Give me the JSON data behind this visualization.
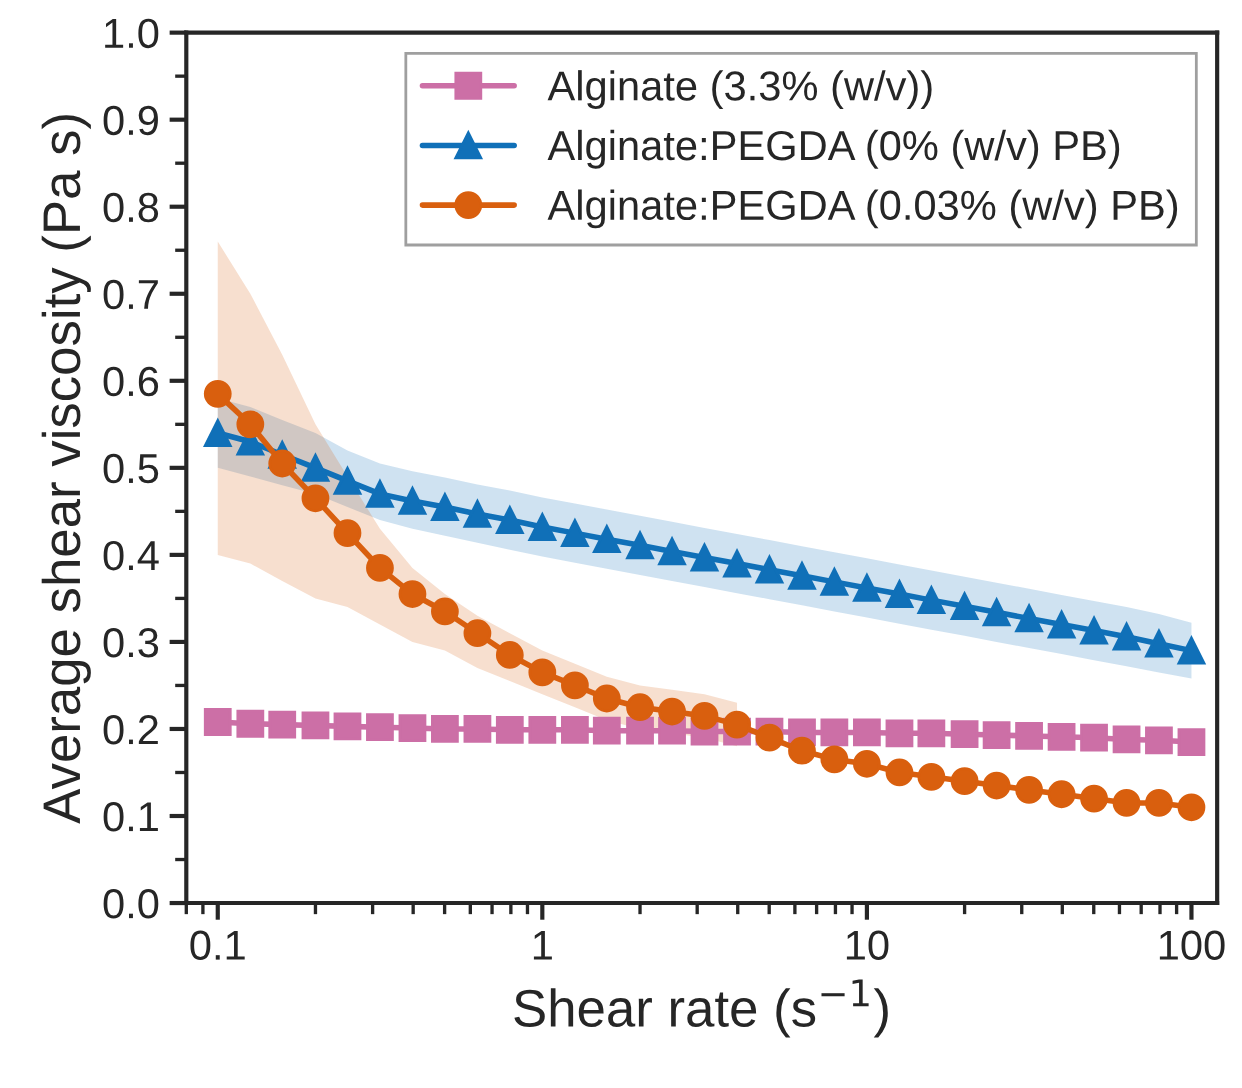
{
  "chart_data": {
    "type": "line",
    "xlabel": "Shear rate (s$^{−1}$)",
    "ylabel": "Average shear viscosity (Pa s)",
    "log": "x",
    "x": [
      0.1,
      0.126,
      0.158,
      0.2,
      0.251,
      0.316,
      0.398,
      0.501,
      0.631,
      0.794,
      1,
      1.26,
      1.58,
      2,
      2.51,
      3.16,
      3.98,
      5.01,
      6.31,
      7.94,
      10,
      12.6,
      15.8,
      20,
      25.1,
      31.6,
      39.8,
      50.1,
      63.1,
      79.4,
      100
    ],
    "series": [
      {
        "name": "Alginate (3.3% (w/v))",
        "color": "#cc6fa6",
        "marker": "square",
        "values": [
          0.208,
          0.206,
          0.205,
          0.204,
          0.203,
          0.202,
          0.201,
          0.2,
          0.2,
          0.199,
          0.199,
          0.199,
          0.198,
          0.198,
          0.198,
          0.197,
          0.197,
          0.197,
          0.196,
          0.196,
          0.196,
          0.195,
          0.195,
          0.194,
          0.193,
          0.192,
          0.191,
          0.19,
          0.188,
          0.187,
          0.185
        ]
      },
      {
        "name": "Alginate:PEGDA (0% (w/v) PB)",
        "color": "#1070b8",
        "marker": "triangle",
        "values": [
          0.54,
          0.53,
          0.515,
          0.5,
          0.485,
          0.47,
          0.462,
          0.455,
          0.447,
          0.44,
          0.432,
          0.425,
          0.418,
          0.411,
          0.404,
          0.397,
          0.39,
          0.383,
          0.376,
          0.369,
          0.362,
          0.355,
          0.348,
          0.341,
          0.334,
          0.327,
          0.32,
          0.313,
          0.306,
          0.298,
          0.29
        ],
        "lower": [
          0.5,
          0.49,
          0.48,
          0.47,
          0.455,
          0.44,
          0.43,
          0.422,
          0.414,
          0.406,
          0.398,
          0.391,
          0.384,
          0.377,
          0.37,
          0.363,
          0.356,
          0.349,
          0.342,
          0.335,
          0.328,
          0.321,
          0.314,
          0.307,
          0.3,
          0.293,
          0.286,
          0.279,
          0.272,
          0.265,
          0.258
        ],
        "upper": [
          0.58,
          0.57,
          0.555,
          0.54,
          0.52,
          0.505,
          0.496,
          0.489,
          0.481,
          0.474,
          0.466,
          0.459,
          0.452,
          0.445,
          0.438,
          0.431,
          0.424,
          0.417,
          0.41,
          0.403,
          0.396,
          0.389,
          0.382,
          0.375,
          0.368,
          0.361,
          0.354,
          0.347,
          0.34,
          0.332,
          0.322
        ]
      },
      {
        "name": "Alginate:PEGDA (0.03% (w/v) PB)",
        "color": "#d95f0e",
        "marker": "circle",
        "values": [
          0.585,
          0.55,
          0.505,
          0.465,
          0.425,
          0.385,
          0.355,
          0.335,
          0.31,
          0.285,
          0.265,
          0.25,
          0.235,
          0.225,
          0.22,
          0.215,
          0.205,
          0.19,
          0.175,
          0.165,
          0.16,
          0.15,
          0.145,
          0.14,
          0.135,
          0.13,
          0.125,
          0.12,
          0.115,
          0.115,
          0.11
        ],
        "lower": [
          0.4,
          0.39,
          0.37,
          0.35,
          0.34,
          0.32,
          0.3,
          0.29,
          0.27,
          0.255,
          0.24,
          0.225,
          0.21,
          0.2,
          0.195,
          0.19,
          0.18,
          null,
          null,
          null,
          null,
          null,
          null,
          null,
          null,
          null,
          null,
          null,
          null,
          null,
          null
        ],
        "upper": [
          0.76,
          0.7,
          0.63,
          0.55,
          0.49,
          0.43,
          0.385,
          0.355,
          0.33,
          0.31,
          0.29,
          0.275,
          0.26,
          0.25,
          0.245,
          0.24,
          0.23,
          null,
          null,
          null,
          null,
          null,
          null,
          null,
          null,
          null,
          null,
          null,
          null,
          null,
          null
        ]
      }
    ],
    "xlim": [
      0.08,
      120
    ],
    "xticks": [
      0.1,
      1,
      10,
      100
    ],
    "ylim": [
      0,
      1
    ],
    "yticks": [
      {
        "value": 0,
        "label": "0.0"
      },
      0.1,
      0.2,
      0.3,
      0.4,
      0.5,
      0.6,
      0.7,
      0.8,
      0.9,
      {
        "value": 1,
        "label": "1.0"
      }
    ],
    "grid": false,
    "legend": "top right",
    "line_style": "solid"
  }
}
